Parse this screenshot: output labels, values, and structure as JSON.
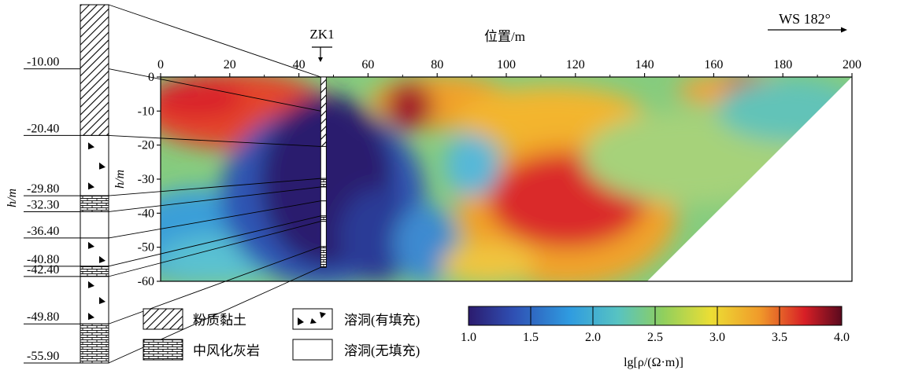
{
  "header": {
    "x_axis_title": "位置/m",
    "direction": "WS 182°",
    "borehole_label": "ZK1"
  },
  "borehole_column": {
    "y_axis_label": "h/m",
    "depths": [
      "-10.00",
      "-20.40",
      "-29.80",
      "-32.30",
      "-36.40",
      "-40.80",
      "-42.40",
      "-49.80",
      "-55.90"
    ],
    "layers": [
      {
        "type": "silty-clay",
        "top": 0,
        "bottom": 20.4
      },
      {
        "type": "cave-filled",
        "top": 20.4,
        "bottom": 29.8
      },
      {
        "type": "limestone",
        "top": 29.8,
        "bottom": 32.3
      },
      {
        "type": "cave-empty",
        "top": 32.3,
        "bottom": 36.4
      },
      {
        "type": "cave-filled",
        "top": 36.4,
        "bottom": 40.8
      },
      {
        "type": "limestone",
        "top": 40.8,
        "bottom": 42.4
      },
      {
        "type": "cave-filled",
        "top": 42.4,
        "bottom": 49.8
      },
      {
        "type": "limestone",
        "top": 49.8,
        "bottom": 55.9
      }
    ]
  },
  "section": {
    "x_ticks": [
      "0",
      "20",
      "40",
      "60",
      "80",
      "100",
      "120",
      "140",
      "160",
      "180",
      "200"
    ],
    "y_ticks": [
      "0",
      "-10",
      "-20",
      "-30",
      "-40",
      "-50",
      "-60"
    ],
    "y_axis_label": "h/m",
    "x_range": [
      0,
      200
    ],
    "y_range": [
      -60,
      0
    ],
    "borehole_x": 47
  },
  "legend": {
    "silty_clay": "粉质黏土",
    "limestone": "中风化灰岩",
    "cave_filled": "溶洞(有填充)",
    "cave_empty": "溶洞(无填充)"
  },
  "colorbar": {
    "ticks": [
      "1.0",
      "1.5",
      "2.0",
      "2.5",
      "3.0",
      "3.5",
      "4.0"
    ],
    "label": "lg[ρ/(Ω·m)]",
    "range": [
      1.0,
      4.0
    ]
  }
}
